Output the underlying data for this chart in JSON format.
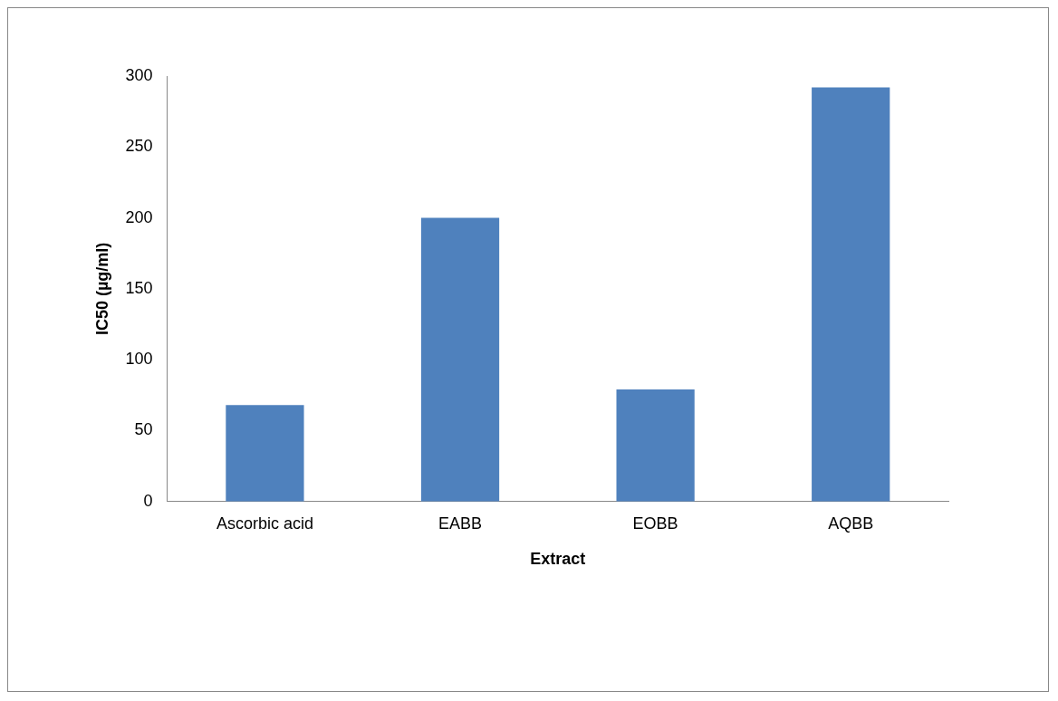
{
  "chart_data": {
    "type": "bar",
    "xlabel": "Extract",
    "ylabel": "IC50 (µg/ml)",
    "categories": [
      "Ascorbic acid",
      "EABB",
      "EOBB",
      "AQBB"
    ],
    "values": [
      68,
      200,
      79,
      292
    ],
    "color": "#4f81bd",
    "ylim": [
      0,
      300
    ],
    "yticks": [
      0,
      50,
      100,
      150,
      200,
      250,
      300
    ],
    "grid": false,
    "legend": false
  }
}
